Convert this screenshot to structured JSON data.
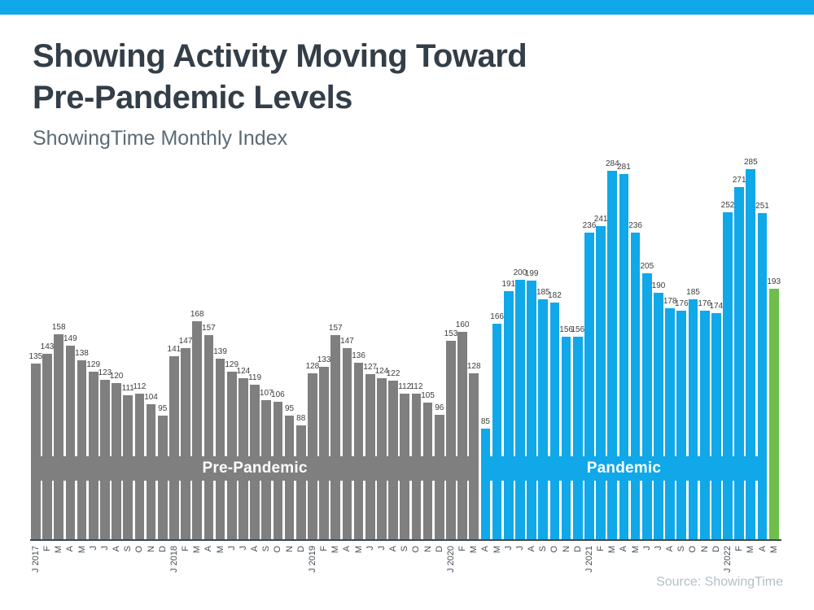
{
  "page": {
    "title_line1": "Showing Activity Moving Toward",
    "title_line2": "Pre-Pandemic Levels",
    "subtitle": "ShowingTime Monthly Index",
    "source": "Source: ShowingTime",
    "accent_color": "#10a8e9"
  },
  "chart_data": {
    "type": "bar",
    "title": "Showing Activity Moving Toward Pre-Pandemic Levels",
    "subtitle": "ShowingTime Monthly Index",
    "xlabel": "",
    "ylabel": "",
    "ylim": [
      0,
      285
    ],
    "grid": false,
    "legend": "none",
    "value_labels": "above bars",
    "categories": [
      "J 2017",
      "F",
      "M",
      "A",
      "M",
      "J",
      "J",
      "A",
      "S",
      "O",
      "N",
      "D",
      "J 2018",
      "F",
      "M",
      "A",
      "M",
      "J",
      "J",
      "A",
      "S",
      "O",
      "N",
      "D",
      "J 2019",
      "F",
      "M",
      "A",
      "M",
      "J",
      "J",
      "A",
      "S",
      "O",
      "N",
      "D",
      "J 2020",
      "F",
      "M",
      "A",
      "M",
      "J",
      "J",
      "A",
      "S",
      "O",
      "N",
      "D",
      "J 2021",
      "F",
      "M",
      "A",
      "M",
      "J",
      "J",
      "A",
      "S",
      "O",
      "N",
      "D",
      "J 2022",
      "F",
      "M",
      "A",
      "M"
    ],
    "values": [
      135,
      143,
      158,
      149,
      138,
      129,
      123,
      120,
      111,
      112,
      104,
      95,
      141,
      147,
      168,
      157,
      139,
      129,
      124,
      119,
      107,
      106,
      95,
      88,
      128,
      133,
      157,
      147,
      136,
      127,
      124,
      122,
      112,
      112,
      105,
      96,
      153,
      160,
      128,
      85,
      166,
      191,
      200,
      199,
      185,
      182,
      156,
      156,
      236,
      241,
      284,
      281,
      236,
      205,
      190,
      178,
      176,
      185,
      176,
      174,
      252,
      271,
      285,
      251,
      193
    ],
    "segments": [
      {
        "name": "pre-pandemic",
        "label": "Pre-Pandemic",
        "start_index": 0,
        "end_index": 38,
        "color": "#7f7f7f"
      },
      {
        "name": "pandemic",
        "label": "Pandemic",
        "start_index": 39,
        "end_index": 63,
        "color": "#10a8e9"
      },
      {
        "name": "latest-month",
        "label": "",
        "start_index": 64,
        "end_index": 64,
        "color": "#6fbe4b"
      }
    ]
  }
}
